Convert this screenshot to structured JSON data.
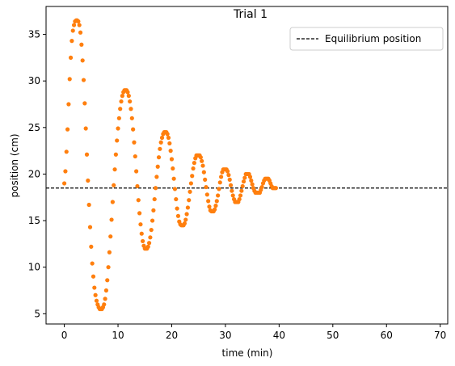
{
  "chart_data": {
    "type": "scatter",
    "title": "Trial 1",
    "xlabel": "time (min)",
    "ylabel": "position (cm)",
    "xlim": [
      -3.4,
      71.4
    ],
    "ylim": [
      3.9,
      38.0
    ],
    "xticks": [
      0,
      10,
      20,
      30,
      40,
      50,
      60,
      70
    ],
    "yticks": [
      5,
      10,
      15,
      20,
      25,
      30,
      35
    ],
    "grid": false,
    "legend_position": "top-right",
    "reference_line": {
      "label": "Equilibrium position",
      "y": 18.5,
      "style": "dashed",
      "color": "#000000"
    },
    "series": [
      {
        "color": "#ff7f0e",
        "points": [
          [
            0.0,
            19.0
          ],
          [
            0.2,
            20.3
          ],
          [
            0.4,
            22.4
          ],
          [
            0.6,
            24.8
          ],
          [
            0.8,
            27.5
          ],
          [
            1.0,
            30.2
          ],
          [
            1.2,
            32.5
          ],
          [
            1.4,
            34.3
          ],
          [
            1.6,
            35.4
          ],
          [
            1.8,
            36.0
          ],
          [
            2.0,
            36.4
          ],
          [
            2.2,
            36.5
          ],
          [
            2.4,
            36.5
          ],
          [
            2.6,
            36.4
          ],
          [
            2.8,
            36.0
          ],
          [
            3.0,
            35.2
          ],
          [
            3.2,
            33.9
          ],
          [
            3.4,
            32.2
          ],
          [
            3.6,
            30.1
          ],
          [
            3.8,
            27.6
          ],
          [
            4.0,
            24.9
          ],
          [
            4.2,
            22.1
          ],
          [
            4.4,
            19.3
          ],
          [
            4.6,
            16.7
          ],
          [
            4.8,
            14.3
          ],
          [
            5.0,
            12.2
          ],
          [
            5.2,
            10.4
          ],
          [
            5.4,
            9.0
          ],
          [
            5.6,
            7.8
          ],
          [
            5.8,
            7.0
          ],
          [
            6.0,
            6.4
          ],
          [
            6.2,
            6.0
          ],
          [
            6.4,
            5.7
          ],
          [
            6.6,
            5.5
          ],
          [
            6.8,
            5.5
          ],
          [
            7.0,
            5.5
          ],
          [
            7.2,
            5.7
          ],
          [
            7.4,
            6.0
          ],
          [
            7.6,
            6.6
          ],
          [
            7.8,
            7.5
          ],
          [
            8.0,
            8.6
          ],
          [
            8.2,
            10.0
          ],
          [
            8.4,
            11.6
          ],
          [
            8.6,
            13.3
          ],
          [
            8.8,
            15.1
          ],
          [
            9.0,
            17.0
          ],
          [
            9.2,
            18.8
          ],
          [
            9.4,
            20.5
          ],
          [
            9.6,
            22.1
          ],
          [
            9.8,
            23.6
          ],
          [
            10.0,
            24.9
          ],
          [
            10.2,
            26.0
          ],
          [
            10.4,
            27.0
          ],
          [
            10.6,
            27.8
          ],
          [
            10.8,
            28.4
          ],
          [
            11.0,
            28.8
          ],
          [
            11.2,
            29.0
          ],
          [
            11.4,
            29.0
          ],
          [
            11.6,
            29.0
          ],
          [
            11.8,
            28.8
          ],
          [
            12.0,
            28.4
          ],
          [
            12.2,
            27.8
          ],
          [
            12.4,
            27.0
          ],
          [
            12.6,
            26.0
          ],
          [
            12.8,
            24.8
          ],
          [
            13.0,
            23.4
          ],
          [
            13.2,
            21.9
          ],
          [
            13.4,
            20.3
          ],
          [
            13.6,
            18.7
          ],
          [
            13.8,
            17.2
          ],
          [
            14.0,
            15.8
          ],
          [
            14.2,
            14.6
          ],
          [
            14.4,
            13.6
          ],
          [
            14.6,
            12.8
          ],
          [
            14.8,
            12.3
          ],
          [
            15.0,
            12.0
          ],
          [
            15.2,
            12.0
          ],
          [
            15.4,
            12.0
          ],
          [
            15.6,
            12.2
          ],
          [
            15.8,
            12.6
          ],
          [
            16.0,
            13.2
          ],
          [
            16.2,
            14.0
          ],
          [
            16.4,
            15.0
          ],
          [
            16.6,
            16.1
          ],
          [
            16.8,
            17.3
          ],
          [
            17.0,
            18.5
          ],
          [
            17.2,
            19.7
          ],
          [
            17.4,
            20.8
          ],
          [
            17.6,
            21.8
          ],
          [
            17.8,
            22.7
          ],
          [
            18.0,
            23.4
          ],
          [
            18.2,
            23.9
          ],
          [
            18.4,
            24.3
          ],
          [
            18.6,
            24.5
          ],
          [
            18.8,
            24.5
          ],
          [
            19.0,
            24.5
          ],
          [
            19.2,
            24.3
          ],
          [
            19.4,
            23.9
          ],
          [
            19.6,
            23.3
          ],
          [
            19.8,
            22.5
          ],
          [
            20.0,
            21.6
          ],
          [
            20.2,
            20.6
          ],
          [
            20.4,
            19.5
          ],
          [
            20.6,
            18.4
          ],
          [
            20.8,
            17.3
          ],
          [
            21.0,
            16.3
          ],
          [
            21.2,
            15.5
          ],
          [
            21.4,
            14.9
          ],
          [
            21.6,
            14.6
          ],
          [
            21.8,
            14.5
          ],
          [
            22.0,
            14.5
          ],
          [
            22.2,
            14.5
          ],
          [
            22.4,
            14.7
          ],
          [
            22.6,
            15.1
          ],
          [
            22.8,
            15.7
          ],
          [
            23.0,
            16.4
          ],
          [
            23.2,
            17.2
          ],
          [
            23.4,
            18.1
          ],
          [
            23.6,
            19.0
          ],
          [
            23.8,
            19.8
          ],
          [
            24.0,
            20.6
          ],
          [
            24.2,
            21.2
          ],
          [
            24.4,
            21.7
          ],
          [
            24.6,
            22.0
          ],
          [
            24.8,
            22.0
          ],
          [
            25.0,
            22.0
          ],
          [
            25.2,
            22.0
          ],
          [
            25.4,
            21.8
          ],
          [
            25.6,
            21.4
          ],
          [
            25.8,
            20.9
          ],
          [
            26.0,
            20.2
          ],
          [
            26.2,
            19.4
          ],
          [
            26.4,
            18.6
          ],
          [
            26.6,
            17.8
          ],
          [
            26.8,
            17.1
          ],
          [
            27.0,
            16.5
          ],
          [
            27.2,
            16.1
          ],
          [
            27.4,
            16.0
          ],
          [
            27.6,
            16.0
          ],
          [
            27.8,
            16.0
          ],
          [
            28.0,
            16.2
          ],
          [
            28.2,
            16.6
          ],
          [
            28.4,
            17.1
          ],
          [
            28.6,
            17.7
          ],
          [
            28.8,
            18.4
          ],
          [
            29.0,
            19.1
          ],
          [
            29.2,
            19.7
          ],
          [
            29.4,
            20.2
          ],
          [
            29.6,
            20.5
          ],
          [
            29.8,
            20.5
          ],
          [
            30.0,
            20.5
          ],
          [
            30.2,
            20.5
          ],
          [
            30.4,
            20.3
          ],
          [
            30.6,
            19.9
          ],
          [
            30.8,
            19.4
          ],
          [
            31.0,
            18.8
          ],
          [
            31.2,
            18.2
          ],
          [
            31.4,
            17.7
          ],
          [
            31.6,
            17.3
          ],
          [
            31.8,
            17.0
          ],
          [
            32.0,
            17.0
          ],
          [
            32.2,
            17.0
          ],
          [
            32.4,
            17.0
          ],
          [
            32.6,
            17.3
          ],
          [
            32.8,
            17.7
          ],
          [
            33.0,
            18.2
          ],
          [
            33.2,
            18.7
          ],
          [
            33.4,
            19.2
          ],
          [
            33.6,
            19.6
          ],
          [
            33.8,
            20.0
          ],
          [
            34.0,
            20.0
          ],
          [
            34.2,
            20.0
          ],
          [
            34.4,
            20.0
          ],
          [
            34.6,
            19.7
          ],
          [
            34.8,
            19.3
          ],
          [
            35.0,
            18.9
          ],
          [
            35.2,
            18.5
          ],
          [
            35.4,
            18.2
          ],
          [
            35.6,
            18.0
          ],
          [
            35.8,
            18.0
          ],
          [
            36.0,
            18.0
          ],
          [
            36.2,
            18.0
          ],
          [
            36.4,
            18.0
          ],
          [
            36.6,
            18.3
          ],
          [
            36.8,
            18.6
          ],
          [
            37.0,
            19.0
          ],
          [
            37.2,
            19.3
          ],
          [
            37.4,
            19.5
          ],
          [
            37.6,
            19.5
          ],
          [
            37.8,
            19.5
          ],
          [
            38.0,
            19.5
          ],
          [
            38.2,
            19.3
          ],
          [
            38.4,
            19.0
          ],
          [
            38.6,
            18.7
          ],
          [
            38.8,
            18.5
          ],
          [
            39.0,
            18.5
          ],
          [
            39.2,
            18.5
          ],
          [
            39.4,
            18.5
          ]
        ]
      }
    ]
  }
}
